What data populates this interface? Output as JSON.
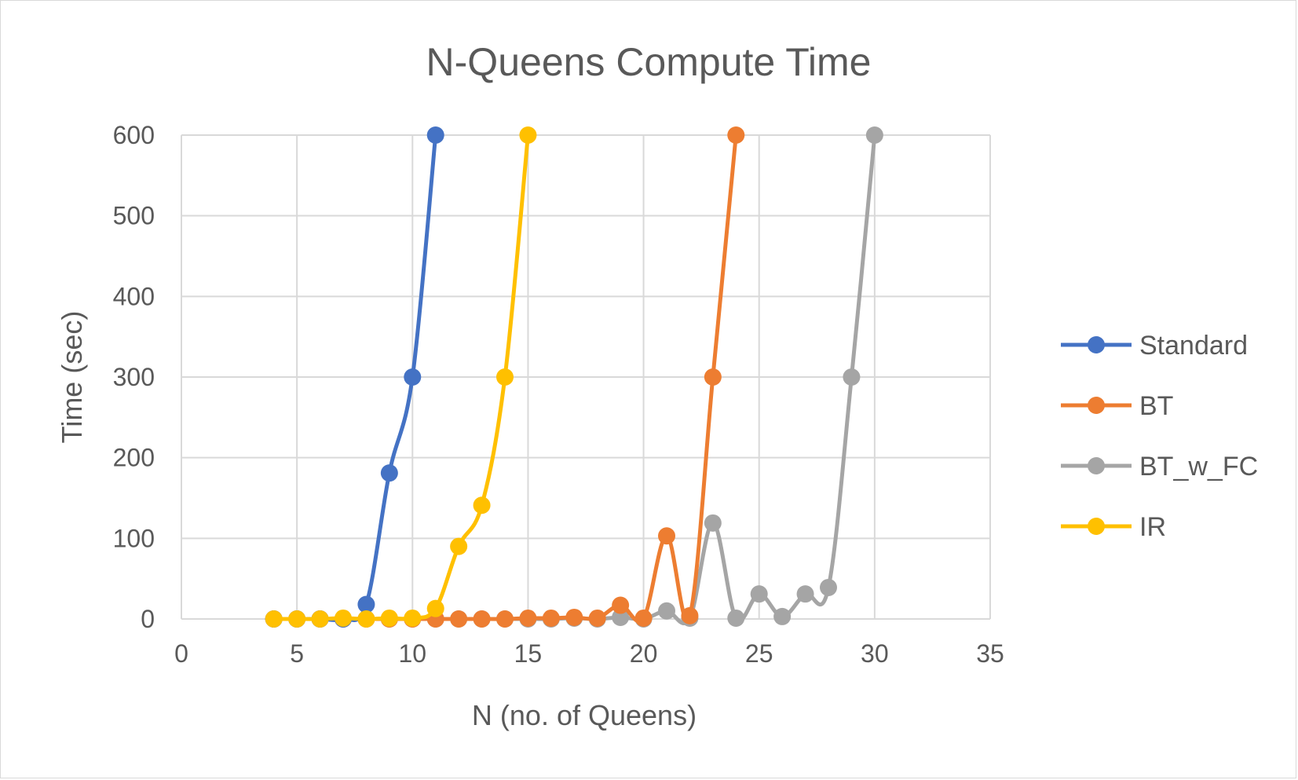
{
  "chart_data": {
    "type": "scatter",
    "title": "N-Queens Compute Time",
    "xlabel": "N (no. of Queens)",
    "ylabel": "Time (sec)",
    "xlim": [
      0,
      35
    ],
    "ylim": [
      0,
      600
    ],
    "xticks": [
      0,
      5,
      10,
      15,
      20,
      25,
      30,
      35
    ],
    "yticks": [
      0,
      100,
      200,
      300,
      400,
      500,
      600
    ],
    "grid": true,
    "legend_position": "right",
    "series": [
      {
        "name": "Standard",
        "color": "#4472c4",
        "x": [
          4,
          5,
          6,
          7,
          8,
          9,
          10,
          11
        ],
        "y": [
          0,
          0,
          0,
          0,
          18,
          181,
          300,
          600
        ]
      },
      {
        "name": "BT",
        "color": "#ed7d31",
        "x": [
          4,
          5,
          6,
          7,
          8,
          9,
          10,
          11,
          12,
          13,
          14,
          15,
          16,
          17,
          18,
          19,
          20,
          21,
          22,
          23,
          24
        ],
        "y": [
          0,
          0,
          0,
          0,
          0,
          0,
          0,
          0,
          0,
          0,
          0,
          1,
          1,
          2,
          1,
          17,
          1,
          103,
          4,
          300,
          600
        ]
      },
      {
        "name": "BT_w_FC",
        "color": "#a5a5a5",
        "x": [
          4,
          5,
          6,
          7,
          8,
          9,
          10,
          11,
          12,
          13,
          14,
          15,
          16,
          17,
          18,
          19,
          20,
          21,
          22,
          23,
          24,
          25,
          26,
          27,
          28,
          29,
          30
        ],
        "y": [
          0,
          0,
          0,
          0,
          0,
          0,
          0,
          0,
          0,
          0,
          0,
          0,
          0,
          1,
          0,
          2,
          0,
          10,
          1,
          119,
          1,
          31,
          3,
          31,
          39,
          300,
          600
        ]
      },
      {
        "name": "IR",
        "color": "#ffc000",
        "x": [
          4,
          5,
          6,
          7,
          8,
          9,
          10,
          11,
          12,
          13,
          14,
          15
        ],
        "y": [
          0,
          0,
          0,
          1,
          0,
          1,
          1,
          13,
          90,
          141,
          300,
          600
        ]
      }
    ]
  }
}
